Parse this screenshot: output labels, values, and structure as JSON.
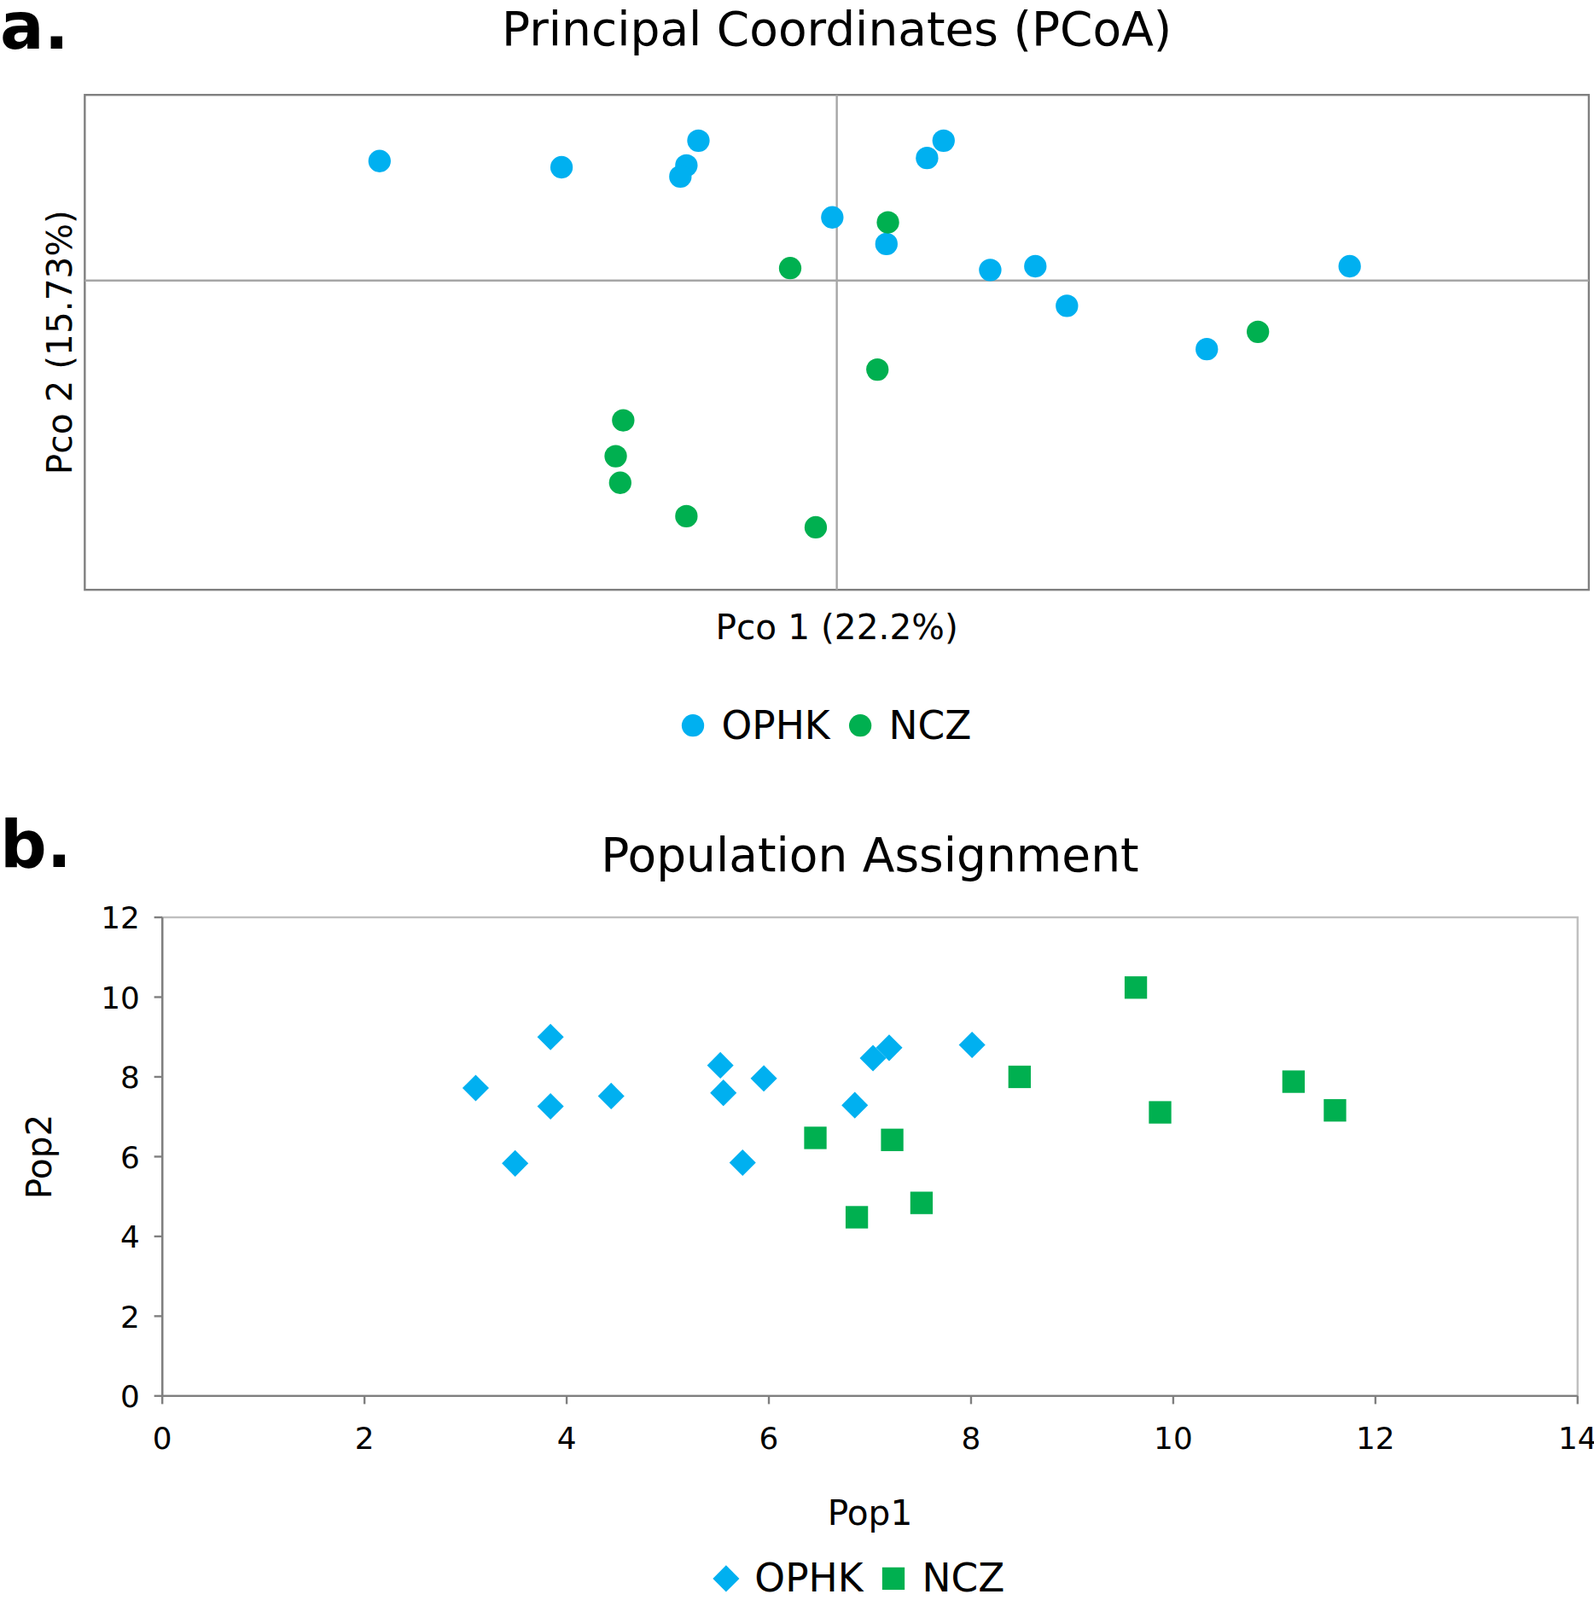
{
  "chart_data": [
    {
      "type": "scatter",
      "annotation": "a.",
      "title": "Principal Coordinates (PCoA)",
      "x_label": "Pco 1 (22.2%)",
      "y_label": "Pco 2 (15.73%)",
      "xlim": [
        -0.5,
        0.5
      ],
      "ylim": [
        -0.5,
        0.3
      ],
      "xticks": [
        0
      ],
      "yticks": [
        0
      ],
      "tick_labels": false,
      "legend": "bottom",
      "series": [
        {
          "name": "OPHK",
          "color": "#00b0f0",
          "marker": "circle",
          "x": [
            -0.304,
            -0.183,
            -0.092,
            -0.1,
            -0.104,
            0.06,
            0.071,
            -0.003,
            0.033,
            0.102,
            0.132,
            0.341,
            0.153,
            0.246
          ],
          "values": [
            0.193,
            0.183,
            0.226,
            0.186,
            0.168,
            0.198,
            0.226,
            0.102,
            0.059,
            0.017,
            0.023,
            0.023,
            -0.041,
            -0.111
          ]
        },
        {
          "name": "NCZ",
          "color": "#00b050",
          "marker": "circle",
          "x": [
            0.034,
            -0.031,
            0.28,
            0.027,
            -0.142,
            -0.147,
            -0.144,
            -0.1,
            -0.014
          ],
          "values": [
            0.094,
            0.02,
            -0.083,
            -0.144,
            -0.226,
            -0.284,
            -0.327,
            -0.381,
            -0.399
          ]
        }
      ]
    },
    {
      "type": "scatter",
      "annotation": "b.",
      "title": "Population Assignment",
      "x_label": "Pop1",
      "y_label": "Pop2",
      "xlim": [
        0,
        14
      ],
      "ylim": [
        0,
        12
      ],
      "xticks": [
        0,
        2,
        4,
        6,
        8,
        10,
        12,
        14
      ],
      "yticks": [
        0,
        2,
        4,
        6,
        8,
        10,
        12
      ],
      "legend": "bottom",
      "series": [
        {
          "name": "OPHK",
          "color": "#00b0f0",
          "marker": "diamond",
          "x": [
            3.1,
            3.84,
            3.84,
            3.49,
            4.44,
            5.52,
            5.55,
            5.95,
            5.74,
            6.85,
            7.03,
            7.19,
            8.01
          ],
          "values": [
            7.72,
            9.0,
            7.26,
            5.83,
            7.52,
            8.29,
            7.6,
            7.96,
            5.85,
            7.29,
            8.47,
            8.73,
            8.8
          ]
        },
        {
          "name": "NCZ",
          "color": "#00b050",
          "marker": "square",
          "x": [
            9.63,
            8.48,
            11.19,
            9.87,
            11.6,
            6.46,
            7.22,
            7.51,
            6.87
          ],
          "values": [
            10.24,
            8.0,
            7.88,
            7.11,
            7.16,
            6.47,
            6.42,
            4.84,
            4.48
          ]
        }
      ]
    }
  ]
}
